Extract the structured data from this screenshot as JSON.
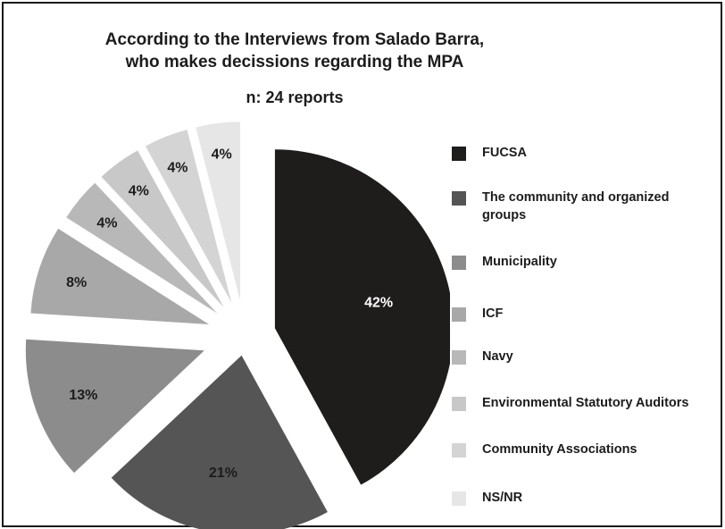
{
  "chart_data": {
    "type": "pie",
    "title": "According to the Interviews from Salado Barra,",
    "title_line2": "who makes decissions regarding the MPA",
    "subtitle": "n: 24 reports",
    "slices": [
      {
        "label": "FUCSA",
        "value": 42,
        "value_label": "42%",
        "color": "#1f1c1c"
      },
      {
        "label": "The community and organized groups",
        "value": 21,
        "value_label": "21%",
        "color": "#555555"
      },
      {
        "label": "Municipality",
        "value": 13,
        "value_label": "13%",
        "color": "#8c8c8c"
      },
      {
        "label": "ICF",
        "value": 8,
        "value_label": "8%",
        "color": "#a8a8a8"
      },
      {
        "label": "Navy",
        "value": 4,
        "value_label": "4%",
        "color": "#b8b8b8"
      },
      {
        "label": "Environmental Statutory Auditors",
        "value": 4,
        "value_label": "4%",
        "color": "#c8c8c8"
      },
      {
        "label": "Community Associations",
        "value": 4,
        "value_label": "4%",
        "color": "#d4d4d4"
      },
      {
        "label": "NS/NR",
        "value": 4,
        "value_label": "4%",
        "color": "#e6e6e6"
      }
    ],
    "legend_position": "right",
    "exploded": true
  }
}
